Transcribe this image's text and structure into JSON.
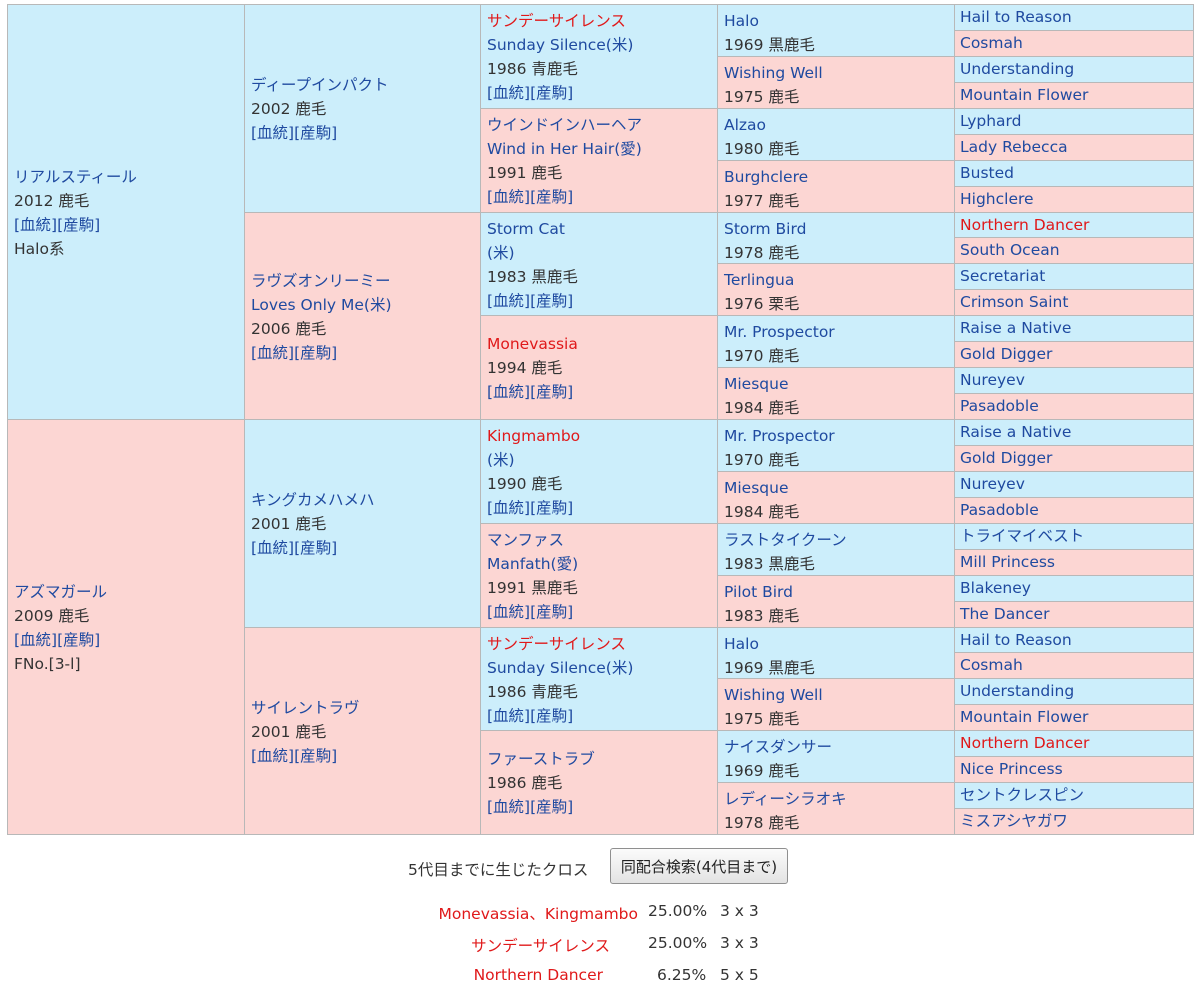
{
  "colors": {
    "male_bg": "#cceefb",
    "female_bg": "#fcd6d3",
    "link": "#1f4aa0",
    "highlight": "#e0191a"
  },
  "pedigree": {
    "g1": [
      {
        "name": "リアルスティール",
        "lines": [
          "2012 鹿毛"
        ],
        "links": [
          "[血統]",
          "[産駒]"
        ],
        "extra": "Halo系",
        "sex": "m"
      },
      {
        "name": "アズマガール",
        "lines": [
          "2009 鹿毛"
        ],
        "links": [
          "[血統]",
          "[産駒]"
        ],
        "extra": "FNo.[3-l]",
        "sex": "f"
      }
    ],
    "g2": [
      {
        "name": "ディープインパクト",
        "lines": [
          "2002 鹿毛"
        ],
        "links": [
          "[血統]",
          "[産駒]"
        ],
        "sex": "m"
      },
      {
        "name": "ラヴズオンリーミー",
        "name2": "Loves Only Me(米)",
        "lines": [
          "2006 鹿毛"
        ],
        "links": [
          "[血統]",
          "[産駒]"
        ],
        "sex": "f"
      },
      {
        "name": "キングカメハメハ",
        "lines": [
          "2001 鹿毛"
        ],
        "links": [
          "[血統]",
          "[産駒]"
        ],
        "sex": "m"
      },
      {
        "name": "サイレントラヴ",
        "lines": [
          "2001 鹿毛"
        ],
        "links": [
          "[血統]",
          "[産駒]"
        ],
        "sex": "f"
      }
    ],
    "g3": [
      {
        "name": "サンデーサイレンス",
        "red": true,
        "name2": "Sunday Silence(米)",
        "lines": [
          "1986 青鹿毛"
        ],
        "links": [
          "[血統]",
          "[産駒]"
        ],
        "sex": "m"
      },
      {
        "name": "ウインドインハーヘア",
        "name2": "Wind in Her Hair(愛)",
        "lines": [
          "1991 鹿毛"
        ],
        "links": [
          "[血統]",
          "[産駒]"
        ],
        "sex": "f"
      },
      {
        "name": "Storm Cat",
        "name2": "(米)",
        "lines": [
          "1983 黒鹿毛"
        ],
        "links": [
          "[血統]",
          "[産駒]"
        ],
        "sex": "m"
      },
      {
        "name": "Monevassia",
        "red": true,
        "lines": [
          "1994 鹿毛"
        ],
        "links": [
          "[血統]",
          "[産駒]"
        ],
        "sex": "f"
      },
      {
        "name": "Kingmambo",
        "red": true,
        "name2": "(米)",
        "lines": [
          "1990 鹿毛"
        ],
        "links": [
          "[血統]",
          "[産駒]"
        ],
        "sex": "m"
      },
      {
        "name": "マンファス",
        "name2": "Manfath(愛)",
        "lines": [
          "1991 黒鹿毛"
        ],
        "links": [
          "[血統]",
          "[産駒]"
        ],
        "sex": "f"
      },
      {
        "name": "サンデーサイレンス",
        "red": true,
        "name2": "Sunday Silence(米)",
        "lines": [
          "1986 青鹿毛"
        ],
        "links": [
          "[血統]",
          "[産駒]"
        ],
        "sex": "m"
      },
      {
        "name": "ファーストラブ",
        "lines": [
          "1986 鹿毛"
        ],
        "links": [
          "[血統]",
          "[産駒]"
        ],
        "sex": "f"
      }
    ],
    "g4": [
      {
        "name": "Halo",
        "lines": [
          "1969 黒鹿毛"
        ],
        "sex": "m"
      },
      {
        "name": "Wishing Well",
        "lines": [
          "1975 鹿毛"
        ],
        "sex": "f"
      },
      {
        "name": "Alzao",
        "lines": [
          "1980 鹿毛"
        ],
        "sex": "m"
      },
      {
        "name": "Burghclere",
        "lines": [
          "1977 鹿毛"
        ],
        "sex": "f"
      },
      {
        "name": "Storm Bird",
        "lines": [
          "1978 鹿毛"
        ],
        "sex": "m"
      },
      {
        "name": "Terlingua",
        "lines": [
          "1976 栗毛"
        ],
        "sex": "f"
      },
      {
        "name": "Mr. Prospector",
        "lines": [
          "1970 鹿毛"
        ],
        "sex": "m"
      },
      {
        "name": "Miesque",
        "lines": [
          "1984 鹿毛"
        ],
        "sex": "f"
      },
      {
        "name": "Mr. Prospector",
        "lines": [
          "1970 鹿毛"
        ],
        "sex": "m"
      },
      {
        "name": "Miesque",
        "lines": [
          "1984 鹿毛"
        ],
        "sex": "f"
      },
      {
        "name": "ラストタイクーン",
        "lines": [
          "1983 黒鹿毛"
        ],
        "sex": "m"
      },
      {
        "name": "Pilot Bird",
        "lines": [
          "1983 鹿毛"
        ],
        "sex": "f"
      },
      {
        "name": "Halo",
        "lines": [
          "1969 黒鹿毛"
        ],
        "sex": "m"
      },
      {
        "name": "Wishing Well",
        "lines": [
          "1975 鹿毛"
        ],
        "sex": "f"
      },
      {
        "name": "ナイスダンサー",
        "lines": [
          "1969 鹿毛"
        ],
        "sex": "m"
      },
      {
        "name": "レディーシラオキ",
        "lines": [
          "1978 鹿毛"
        ],
        "sex": "f"
      }
    ],
    "g5": [
      {
        "name": "Hail to Reason",
        "sex": "m"
      },
      {
        "name": "Cosmah",
        "sex": "f"
      },
      {
        "name": "Understanding",
        "sex": "m"
      },
      {
        "name": "Mountain Flower",
        "sex": "f"
      },
      {
        "name": "Lyphard",
        "sex": "m"
      },
      {
        "name": "Lady Rebecca",
        "sex": "f"
      },
      {
        "name": "Busted",
        "sex": "m"
      },
      {
        "name": "Highclere",
        "sex": "f"
      },
      {
        "name": "Northern Dancer",
        "red": true,
        "sex": "m"
      },
      {
        "name": "South Ocean",
        "sex": "f"
      },
      {
        "name": "Secretariat",
        "sex": "m"
      },
      {
        "name": "Crimson Saint",
        "sex": "f"
      },
      {
        "name": "Raise a Native",
        "sex": "m"
      },
      {
        "name": "Gold Digger",
        "sex": "f"
      },
      {
        "name": "Nureyev",
        "sex": "m"
      },
      {
        "name": "Pasadoble",
        "sex": "f"
      },
      {
        "name": "Raise a Native",
        "sex": "m"
      },
      {
        "name": "Gold Digger",
        "sex": "f"
      },
      {
        "name": "Nureyev",
        "sex": "m"
      },
      {
        "name": "Pasadoble",
        "sex": "f"
      },
      {
        "name": "トライマイベスト",
        "sex": "m"
      },
      {
        "name": "Mill Princess",
        "sex": "f"
      },
      {
        "name": "Blakeney",
        "sex": "m"
      },
      {
        "name": "The Dancer",
        "sex": "f"
      },
      {
        "name": "Hail to Reason",
        "sex": "m"
      },
      {
        "name": "Cosmah",
        "sex": "f"
      },
      {
        "name": "Understanding",
        "sex": "m"
      },
      {
        "name": "Mountain Flower",
        "sex": "f"
      },
      {
        "name": "Northern Dancer",
        "red": true,
        "sex": "m"
      },
      {
        "name": "Nice Princess",
        "sex": "f"
      },
      {
        "name": "セントクレスピン",
        "sex": "m"
      },
      {
        "name": "ミスアシヤガワ",
        "sex": "f"
      }
    ]
  },
  "cross": {
    "title": "5代目までに生じたクロス",
    "search_button": "同配合検索(4代目まで)",
    "rows": [
      {
        "horse": "Monevassia、Kingmambo",
        "percent": "25.00%",
        "gen": "3 x 3"
      },
      {
        "horse": "サンデーサイレンス",
        "percent": "25.00%",
        "gen": "3 x 3"
      },
      {
        "horse": "Northern Dancer",
        "percent": "6.25%",
        "gen": "5 x 5"
      }
    ]
  }
}
